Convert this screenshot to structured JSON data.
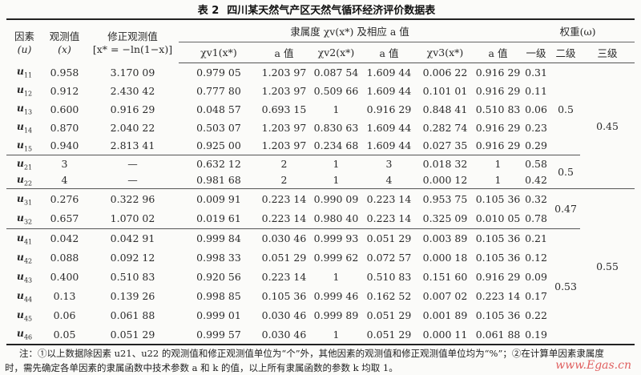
{
  "title": {
    "label": "表 2",
    "text": "四川某天然气产区天然气循环经济评价数据表"
  },
  "header": {
    "factor": [
      "因素",
      "(u)"
    ],
    "observed": [
      "观测值",
      "(x)"
    ],
    "corrected": [
      "修正观测值",
      "[x* = −ln(1−x)]"
    ],
    "membership": "隶属度 χv(x*) 及相应 a 值",
    "sub": [
      "χv1(x*)",
      "a 值",
      "χv2(x*)",
      "a 值",
      "χv3(x*)",
      "a 值"
    ],
    "weight": "权重(ω)",
    "levels": [
      "一级",
      "二级",
      "三级"
    ]
  },
  "groups": [
    {
      "w2": "0.5",
      "rows": [
        {
          "var": "u",
          "sub": "11",
          "v": [
            "0.958",
            "3.170 09",
            "0.979 05",
            "1.203 97",
            "0.087 54",
            "1.609 44",
            "0.006 22",
            "0.916 29",
            "0.31"
          ]
        },
        {
          "var": "u",
          "sub": "12",
          "v": [
            "0.912",
            "2.430 42",
            "0.777 80",
            "1.203 97",
            "0.509 66",
            "1.609 44",
            "0.101 01",
            "0.916 29",
            "0.11"
          ]
        },
        {
          "var": "u",
          "sub": "13",
          "v": [
            "0.600",
            "0.916 29",
            "0.048 57",
            "0.693 15",
            "1",
            "0.916 29",
            "0.848 41",
            "0.510 83",
            "0.06"
          ]
        },
        {
          "var": "u",
          "sub": "14",
          "v": [
            "0.870",
            "2.040 22",
            "0.503 07",
            "1.203 97",
            "0.830 63",
            "1.609 44",
            "0.282 74",
            "0.916 29",
            "0.23"
          ]
        },
        {
          "var": "u",
          "sub": "15",
          "v": [
            "0.940",
            "2.813 41",
            "0.925 00",
            "1.203 97",
            "0.234 68",
            "1.609 44",
            "0.027 35",
            "0.916 29",
            "0.29"
          ]
        }
      ]
    },
    {
      "w2": "0.5",
      "rows": [
        {
          "var": "u",
          "sub": "21",
          "v": [
            "3",
            "—",
            "0.632 12",
            "2",
            "1",
            "3",
            "0.018 32",
            "1",
            "0.58"
          ]
        },
        {
          "var": "u",
          "sub": "22",
          "v": [
            "4",
            "—",
            "0.981 68",
            "2",
            "1",
            "4",
            "0.000 12",
            "1",
            "0.42"
          ]
        }
      ]
    },
    {
      "w2": "0.47",
      "rows": [
        {
          "var": "u",
          "sub": "31",
          "v": [
            "0.276",
            "0.322 96",
            "0.009 91",
            "0.223 14",
            "0.990 09",
            "0.223 14",
            "0.953 75",
            "0.105 36",
            "0.32"
          ]
        },
        {
          "var": "u",
          "sub": "32",
          "v": [
            "0.657",
            "1.070 02",
            "0.019 61",
            "0.223 14",
            "0.980 40",
            "0.223 14",
            "0.325 09",
            "0.010 05",
            "0.78"
          ]
        }
      ]
    },
    {
      "w2": "0.53",
      "rows": [
        {
          "var": "u",
          "sub": "41",
          "v": [
            "0.042",
            "0.042 91",
            "0.999 84",
            "0.030 46",
            "0.999 93",
            "0.051 29",
            "0.003 89",
            "0.105 36",
            "0.21"
          ]
        },
        {
          "var": "u",
          "sub": "42",
          "v": [
            "0.088",
            "0.092 12",
            "0.998 33",
            "0.051 29",
            "0.999 62",
            "0.072 57",
            "0.000 18",
            "0.105 36",
            "0.12"
          ]
        },
        {
          "var": "u",
          "sub": "43",
          "v": [
            "0.400",
            "0.510 83",
            "0.920 56",
            "0.223 14",
            "1",
            "0.510 83",
            "0.151 60",
            "0.916 29",
            "0.09"
          ]
        },
        {
          "var": "u",
          "sub": "44",
          "v": [
            "0.13",
            "0.139 26",
            "0.998 85",
            "0.105 36",
            "0.999 46",
            "0.162 52",
            "0.007 02",
            "0.223 14",
            "0.17"
          ]
        },
        {
          "var": "u",
          "sub": "45",
          "v": [
            "0.06",
            "0.061 88",
            "0.999 01",
            "0.030 46",
            "0.999 89",
            "0.051 29",
            "0.001 89",
            "0.105 36",
            "0.22"
          ]
        },
        {
          "var": "u",
          "sub": "46",
          "v": [
            "0.05",
            "0.051 29",
            "0.999 57",
            "0.030 46",
            "1",
            "0.051 29",
            "0.000 11",
            "0.061 88",
            "0.19"
          ]
        }
      ]
    }
  ],
  "w3": [
    {
      "value": "0.45",
      "groups": 2
    },
    {
      "value": "0.55",
      "groups": 2
    }
  ],
  "note": {
    "line1": "注：①以上数据除因素 u21、u22 的观测值和修正观测值单位为“个”外，其他因素的观测值和修正观测值单位均为“%”；②在计算单因素隶属度",
    "line2": "时，需先确定各单因素的隶属函数中技术参数 a 和 k 的值，以上所有隶属函数的参数 k 均取 1。"
  },
  "watermark": "www.Egas.cn"
}
